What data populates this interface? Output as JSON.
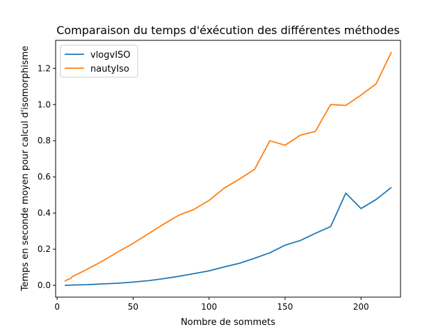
{
  "chart_data": {
    "type": "line",
    "title": "Comparaison du temps d'éxécution des différentes méthodes",
    "xlabel": "Nombre de sommets",
    "ylabel": "Temps en seconde moyen pour calcul d'isomorphisme",
    "xlim": [
      -1,
      226
    ],
    "ylim": [
      -0.065,
      1.355
    ],
    "xticks": [
      0,
      50,
      100,
      150,
      200
    ],
    "yticks": [
      0.0,
      0.2,
      0.4,
      0.6,
      0.8,
      1.0,
      1.2
    ],
    "grid": false,
    "legend_position": "top-left",
    "series": [
      {
        "name": "vlogvISO",
        "color": "#1f77b4",
        "x": [
          5,
          10,
          20,
          30,
          40,
          50,
          60,
          70,
          80,
          90,
          100,
          110,
          120,
          130,
          140,
          150,
          160,
          170,
          180,
          190,
          200,
          210,
          220
        ],
        "y": [
          0.0,
          0.002,
          0.004,
          0.008,
          0.012,
          0.018,
          0.026,
          0.037,
          0.05,
          0.065,
          0.08,
          0.102,
          0.122,
          0.15,
          0.18,
          0.222,
          0.248,
          0.288,
          0.325,
          0.51,
          0.425,
          0.475,
          0.542
        ]
      },
      {
        "name": "nautyIso",
        "color": "#ff7f0e",
        "x": [
          5,
          6,
          7,
          8,
          9,
          10,
          20,
          30,
          40,
          50,
          60,
          70,
          80,
          90,
          100,
          110,
          120,
          130,
          140,
          150,
          160,
          170,
          180,
          190,
          200,
          210,
          220
        ],
        "y": [
          0.022,
          0.028,
          0.032,
          0.036,
          0.038,
          0.048,
          0.09,
          0.135,
          0.185,
          0.232,
          0.285,
          0.338,
          0.388,
          0.42,
          0.47,
          0.538,
          0.588,
          0.642,
          0.8,
          0.775,
          0.83,
          0.852,
          1.0,
          0.995,
          1.052,
          1.115,
          1.29
        ]
      }
    ]
  }
}
